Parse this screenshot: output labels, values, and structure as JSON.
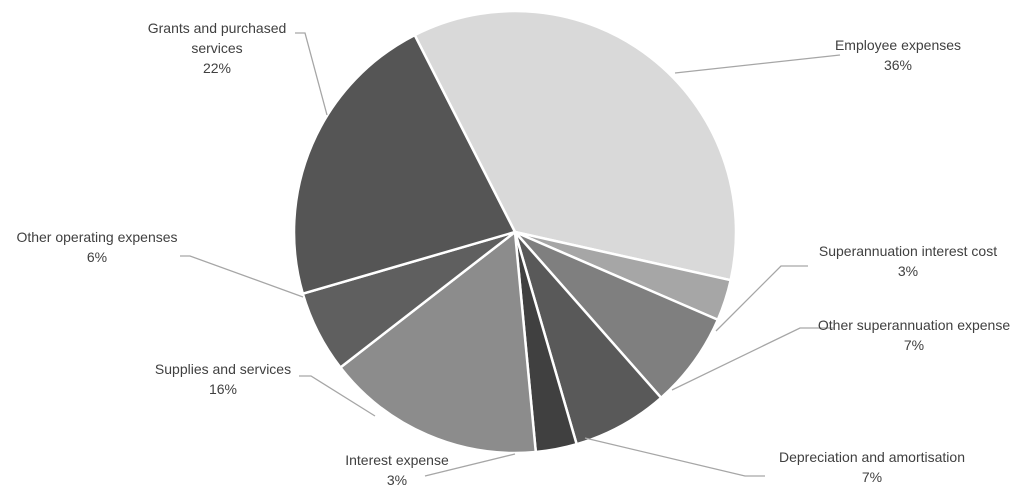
{
  "chart_data": {
    "type": "pie",
    "title": "",
    "legend": "none",
    "slices": [
      {
        "label": "Employee expenses",
        "value": 36,
        "value_label": "36%",
        "color": "#d9d9d9"
      },
      {
        "label": "Superannuation interest cost",
        "value": 3,
        "value_label": "3%",
        "color": "#a6a6a6"
      },
      {
        "label": "Other superannuation expense",
        "value": 7,
        "value_label": "7%",
        "color": "#7f7f7f"
      },
      {
        "label": "Depreciation and amortisation",
        "value": 7,
        "value_label": "7%",
        "color": "#595959"
      },
      {
        "label": "Interest expense",
        "value": 3,
        "value_label": "3%",
        "color": "#404040"
      },
      {
        "label": "Supplies and services",
        "value": 16,
        "value_label": "16%",
        "color": "#8c8c8c"
      },
      {
        "label": "Other operating expenses",
        "value": 6,
        "value_label": "6%",
        "color": "#5f5f5f"
      },
      {
        "label": "Grants and purchased services",
        "value": 22,
        "value_label": "22%",
        "color": "#555555"
      }
    ]
  }
}
